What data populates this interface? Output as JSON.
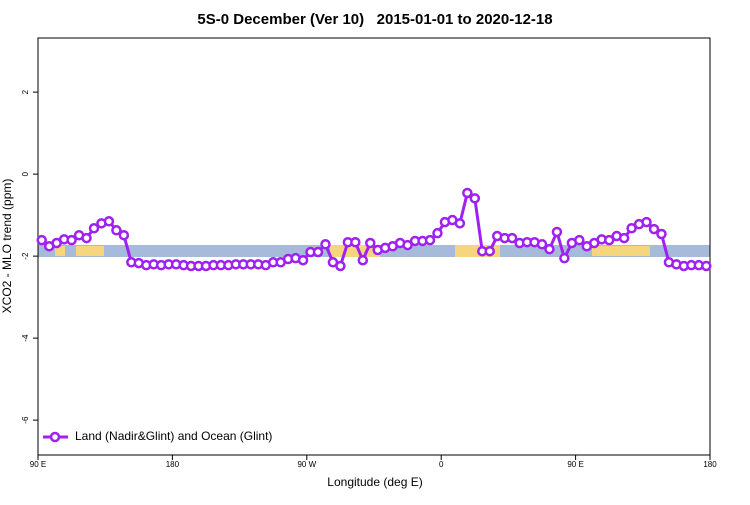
{
  "chart_data": {
    "type": "line",
    "title": "5S-0 December (Ver 10)   2015-01-01 to 2020-12-18",
    "x_label": "Longitude (deg E)",
    "y_label": "XCO2 - MLO trend (ppm)",
    "x": [
      92.5,
      97.5,
      102.5,
      107.5,
      112.5,
      117.5,
      122.5,
      127.5,
      132.5,
      137.5,
      142.5,
      147.5,
      152.5,
      157.5,
      162.5,
      167.5,
      172.5,
      177.5,
      182.5,
      187.5,
      192.5,
      197.5,
      202.5,
      207.5,
      212.5,
      217.5,
      222.5,
      227.5,
      232.5,
      237.5,
      242.5,
      247.5,
      252.5,
      257.5,
      262.5,
      267.5,
      272.5,
      277.5,
      282.5,
      287.5,
      292.5,
      297.5,
      302.5,
      307.5,
      312.5,
      317.5,
      322.5,
      327.5,
      332.5,
      337.5,
      342.5,
      347.5,
      352.5,
      357.5,
      362.5,
      367.5,
      372.5,
      377.5,
      382.5,
      387.5,
      392.5,
      397.5,
      402.5,
      407.5,
      412.5,
      417.5,
      422.5,
      427.5,
      432.5,
      437.5,
      442.5,
      447.5,
      452.5,
      457.5,
      462.5,
      467.5,
      472.5,
      477.5,
      482.5,
      487.5,
      492.5,
      497.5,
      502.5,
      507.5,
      512.5,
      517.5,
      522.5,
      527.5,
      532.5,
      537.5
    ],
    "series": [
      {
        "name": "Land (Nadir&Glint) and Ocean (Glint)",
        "color": "#a020f0",
        "values": [
          -1.61,
          -1.76,
          -1.68,
          -1.59,
          -1.61,
          -1.49,
          -1.56,
          -1.32,
          -1.2,
          -1.15,
          -1.37,
          -1.49,
          -2.15,
          -2.17,
          -2.22,
          -2.2,
          -2.22,
          -2.2,
          -2.2,
          -2.22,
          -2.24,
          -2.24,
          -2.24,
          -2.22,
          -2.22,
          -2.22,
          -2.2,
          -2.2,
          -2.2,
          -2.2,
          -2.22,
          -2.15,
          -2.15,
          -2.07,
          -2.05,
          -2.1,
          -1.9,
          -1.9,
          -1.71,
          -2.15,
          -2.24,
          -1.66,
          -1.66,
          -2.1,
          -1.68,
          -1.85,
          -1.8,
          -1.76,
          -1.68,
          -1.73,
          -1.63,
          -1.63,
          -1.61,
          -1.44,
          -1.17,
          -1.12,
          -1.2,
          -0.46,
          -0.59,
          -1.88,
          -1.88,
          -1.51,
          -1.56,
          -1.56,
          -1.68,
          -1.66,
          -1.66,
          -1.71,
          -1.83,
          -1.41,
          -2.05,
          -1.68,
          -1.61,
          -1.76,
          -1.68,
          -1.59,
          -1.61,
          -1.51,
          -1.56,
          -1.32,
          -1.22,
          -1.17,
          -1.34,
          -1.46,
          -2.15,
          -2.2,
          -2.24,
          -2.22,
          -2.22,
          -2.24
        ]
      }
    ],
    "xlim": [
      90,
      540
    ],
    "xticks": [
      {
        "value": 90,
        "label": "90 E"
      },
      180,
      {
        "value": 270,
        "label": "90 W"
      },
      {
        "value": 360,
        "label": "0"
      },
      {
        "value": 450,
        "label": "90 E"
      },
      {
        "value": 540,
        "label": "180"
      }
    ],
    "ylim": [
      -6.85,
      3.32
    ],
    "yticks": [
      -6,
      -4,
      -2,
      0,
      2
    ],
    "legend": "bottom-left"
  }
}
